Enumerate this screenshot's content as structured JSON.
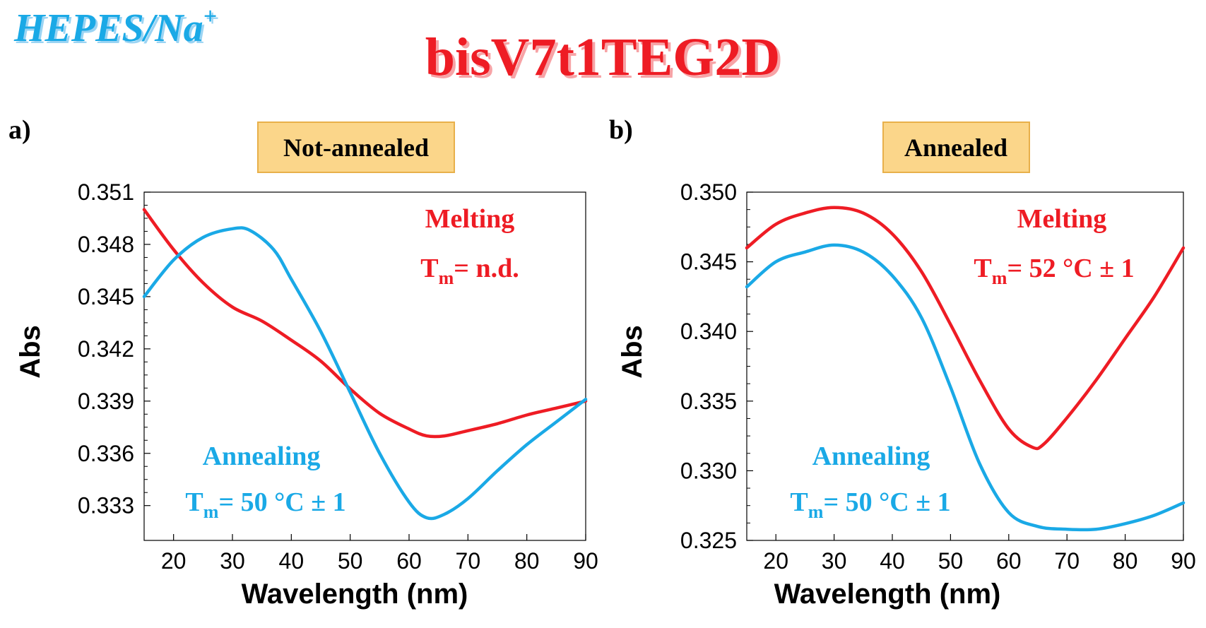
{
  "header": {
    "buffer_label": "HEPES/Na",
    "buffer_superscript": "+",
    "compound_title": "bisV7t1TEG2D"
  },
  "colors": {
    "melting": "#ee1c24",
    "annealing": "#1aa9e6",
    "badge_fill": "#fbd68a",
    "badge_stroke": "#e8b04a"
  },
  "chart_data": [
    {
      "type": "line",
      "panel_label": "a)",
      "badge": "Not-annealed",
      "xlabel": "Wavelength (nm)",
      "ylabel": "Abs",
      "xlim": [
        15,
        90
      ],
      "ylim": [
        0.331,
        0.351
      ],
      "x_ticks": [
        "20",
        "30",
        "40",
        "50",
        "60",
        "70",
        "80",
        "90"
      ],
      "x_tick_values": [
        20,
        30,
        40,
        50,
        60,
        70,
        80,
        90
      ],
      "y_ticks": [
        "0.333",
        "0.336",
        "0.339",
        "0.342",
        "0.345",
        "0.348",
        "0.351"
      ],
      "y_tick_values": [
        0.333,
        0.336,
        0.339,
        0.342,
        0.345,
        0.348,
        0.351
      ],
      "annotations": [
        {
          "series": "melting",
          "title": "Melting",
          "tm_label": "T",
          "tm_sub": "m",
          "tm_value": "= n.d."
        },
        {
          "series": "annealing",
          "title": "Annealing",
          "tm_label": "T",
          "tm_sub": "m",
          "tm_value": "= 50 °C ± 1"
        }
      ],
      "series": [
        {
          "name": "Melting",
          "color_key": "melting",
          "x": [
            15,
            20,
            25,
            30,
            35,
            40,
            45,
            50,
            55,
            60,
            63,
            66,
            70,
            75,
            80,
            85,
            90
          ],
          "y": [
            0.35,
            0.3477,
            0.3458,
            0.3444,
            0.3436,
            0.3425,
            0.3413,
            0.3397,
            0.3383,
            0.3374,
            0.337,
            0.337,
            0.3373,
            0.3377,
            0.3382,
            0.3386,
            0.339
          ]
        },
        {
          "name": "Annealing",
          "color_key": "annealing",
          "x": [
            15,
            20,
            25,
            30,
            33,
            37,
            40,
            45,
            50,
            55,
            60,
            63,
            66,
            70,
            75,
            80,
            85,
            90
          ],
          "y": [
            0.345,
            0.3471,
            0.3484,
            0.3489,
            0.3488,
            0.3477,
            0.346,
            0.343,
            0.3395,
            0.336,
            0.3332,
            0.3323,
            0.3325,
            0.3334,
            0.335,
            0.3365,
            0.3378,
            0.3391
          ]
        }
      ]
    },
    {
      "type": "line",
      "panel_label": "b)",
      "badge": "Annealed",
      "xlabel": "Wavelength (nm)",
      "ylabel": "Abs",
      "xlim": [
        15,
        90
      ],
      "ylim": [
        0.325,
        0.35
      ],
      "x_ticks": [
        "20",
        "30",
        "40",
        "50",
        "60",
        "70",
        "80",
        "90"
      ],
      "x_tick_values": [
        20,
        30,
        40,
        50,
        60,
        70,
        80,
        90
      ],
      "y_ticks": [
        "0.325",
        "0.330",
        "0.335",
        "0.340",
        "0.345",
        "0.350"
      ],
      "y_tick_values": [
        0.325,
        0.33,
        0.335,
        0.34,
        0.345,
        0.35
      ],
      "annotations": [
        {
          "series": "melting",
          "title": "Melting",
          "tm_label": "T",
          "tm_sub": "m",
          "tm_value": "= 52 °C ± 1"
        },
        {
          "series": "annealing",
          "title": "Annealing",
          "tm_label": "T",
          "tm_sub": "m",
          "tm_value": "= 50 °C ± 1"
        }
      ],
      "series": [
        {
          "name": "Melting",
          "color_key": "melting",
          "x": [
            15,
            20,
            25,
            30,
            35,
            40,
            45,
            50,
            55,
            60,
            64,
            66,
            70,
            75,
            80,
            85,
            90
          ],
          "y": [
            0.346,
            0.3477,
            0.3485,
            0.3489,
            0.3485,
            0.347,
            0.3443,
            0.3405,
            0.3365,
            0.333,
            0.3317,
            0.3319,
            0.3338,
            0.3365,
            0.3395,
            0.3425,
            0.346
          ]
        },
        {
          "name": "Annealing",
          "color_key": "annealing",
          "x": [
            15,
            20,
            25,
            30,
            35,
            40,
            45,
            50,
            55,
            60,
            65,
            70,
            75,
            80,
            85,
            90
          ],
          "y": [
            0.3432,
            0.345,
            0.3457,
            0.3462,
            0.3457,
            0.344,
            0.341,
            0.336,
            0.3305,
            0.327,
            0.326,
            0.3258,
            0.3258,
            0.3262,
            0.3268,
            0.3277
          ]
        }
      ]
    }
  ]
}
